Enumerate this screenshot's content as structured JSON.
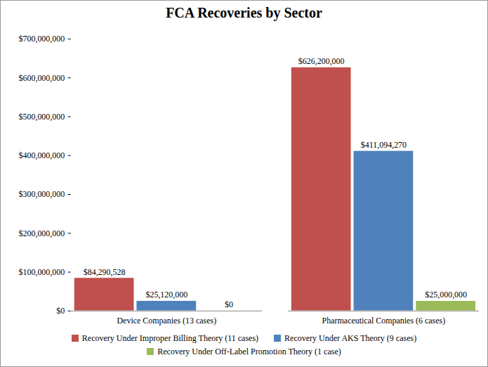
{
  "chart_data": {
    "type": "bar",
    "title": "FCA Recoveries by Sector",
    "categories": [
      "Device Companies (13 cases)",
      "Pharmaceutical Companies (6 cases)"
    ],
    "series": [
      {
        "name": "Recovery Under Improper Billing Theory (11 cases)",
        "color": "#c0504d",
        "values": [
          84290528,
          626200000
        ],
        "value_labels": [
          "$84,290,528",
          "$626,200,000"
        ]
      },
      {
        "name": "Recovery Under AKS Theory (9 cases)",
        "color": "#4f81bd",
        "values": [
          25120000,
          411094270
        ],
        "value_labels": [
          "$25,120,000",
          "$411,094,270"
        ]
      },
      {
        "name": "Recovery Under Off-Label Promotion Theory (1 case)",
        "color": "#9bbb59",
        "values": [
          0,
          25000000
        ],
        "value_labels": [
          "$0",
          "$25,000,000"
        ]
      }
    ],
    "ylim": [
      0,
      700000000
    ],
    "yticks": [
      {
        "value": 0,
        "label": "$0"
      },
      {
        "value": 100000000,
        "label": "$100,000,000"
      },
      {
        "value": 200000000,
        "label": "$200,000,000"
      },
      {
        "value": 300000000,
        "label": "$300,000,000"
      },
      {
        "value": 400000000,
        "label": "$400,000,000"
      },
      {
        "value": 500000000,
        "label": "$500,000,000"
      },
      {
        "value": 600000000,
        "label": "$600,000,000"
      },
      {
        "value": 700000000,
        "label": "$700,000,000"
      }
    ],
    "grid": false,
    "legend": "bottom",
    "data_labels": true
  }
}
